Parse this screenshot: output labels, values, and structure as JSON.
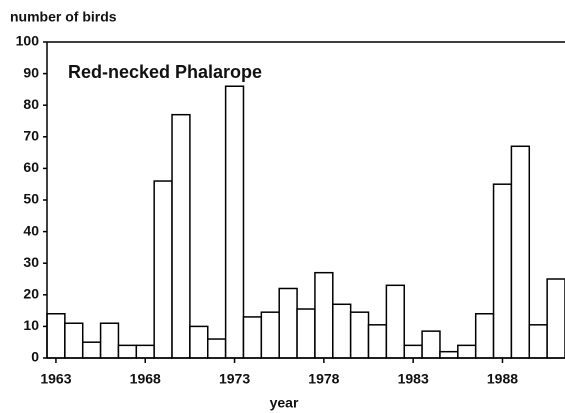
{
  "chart_data": {
    "type": "bar",
    "title": "Red-necked Phalarope",
    "y_label": "number of birds",
    "x_label": "year",
    "categories": [
      "1963",
      null,
      null,
      null,
      null,
      "1968",
      null,
      null,
      null,
      null,
      "1973",
      null,
      null,
      null,
      null,
      "1978",
      null,
      null,
      null,
      null,
      "1983",
      null,
      null,
      null,
      null,
      "1988",
      null,
      null,
      null
    ],
    "values": [
      14,
      11,
      5,
      11,
      4,
      4,
      56,
      77,
      10,
      6,
      86,
      13,
      14.5,
      22,
      15.5,
      27,
      17,
      14.5,
      10.5,
      23,
      4,
      8.5,
      2,
      4,
      14,
      55,
      67,
      10.5,
      25
    ],
    "color": "#ffffff",
    "ylim": [
      0,
      100
    ],
    "yticks": [
      0,
      10,
      20,
      30,
      40,
      50,
      60,
      70,
      80,
      90,
      100
    ]
  }
}
